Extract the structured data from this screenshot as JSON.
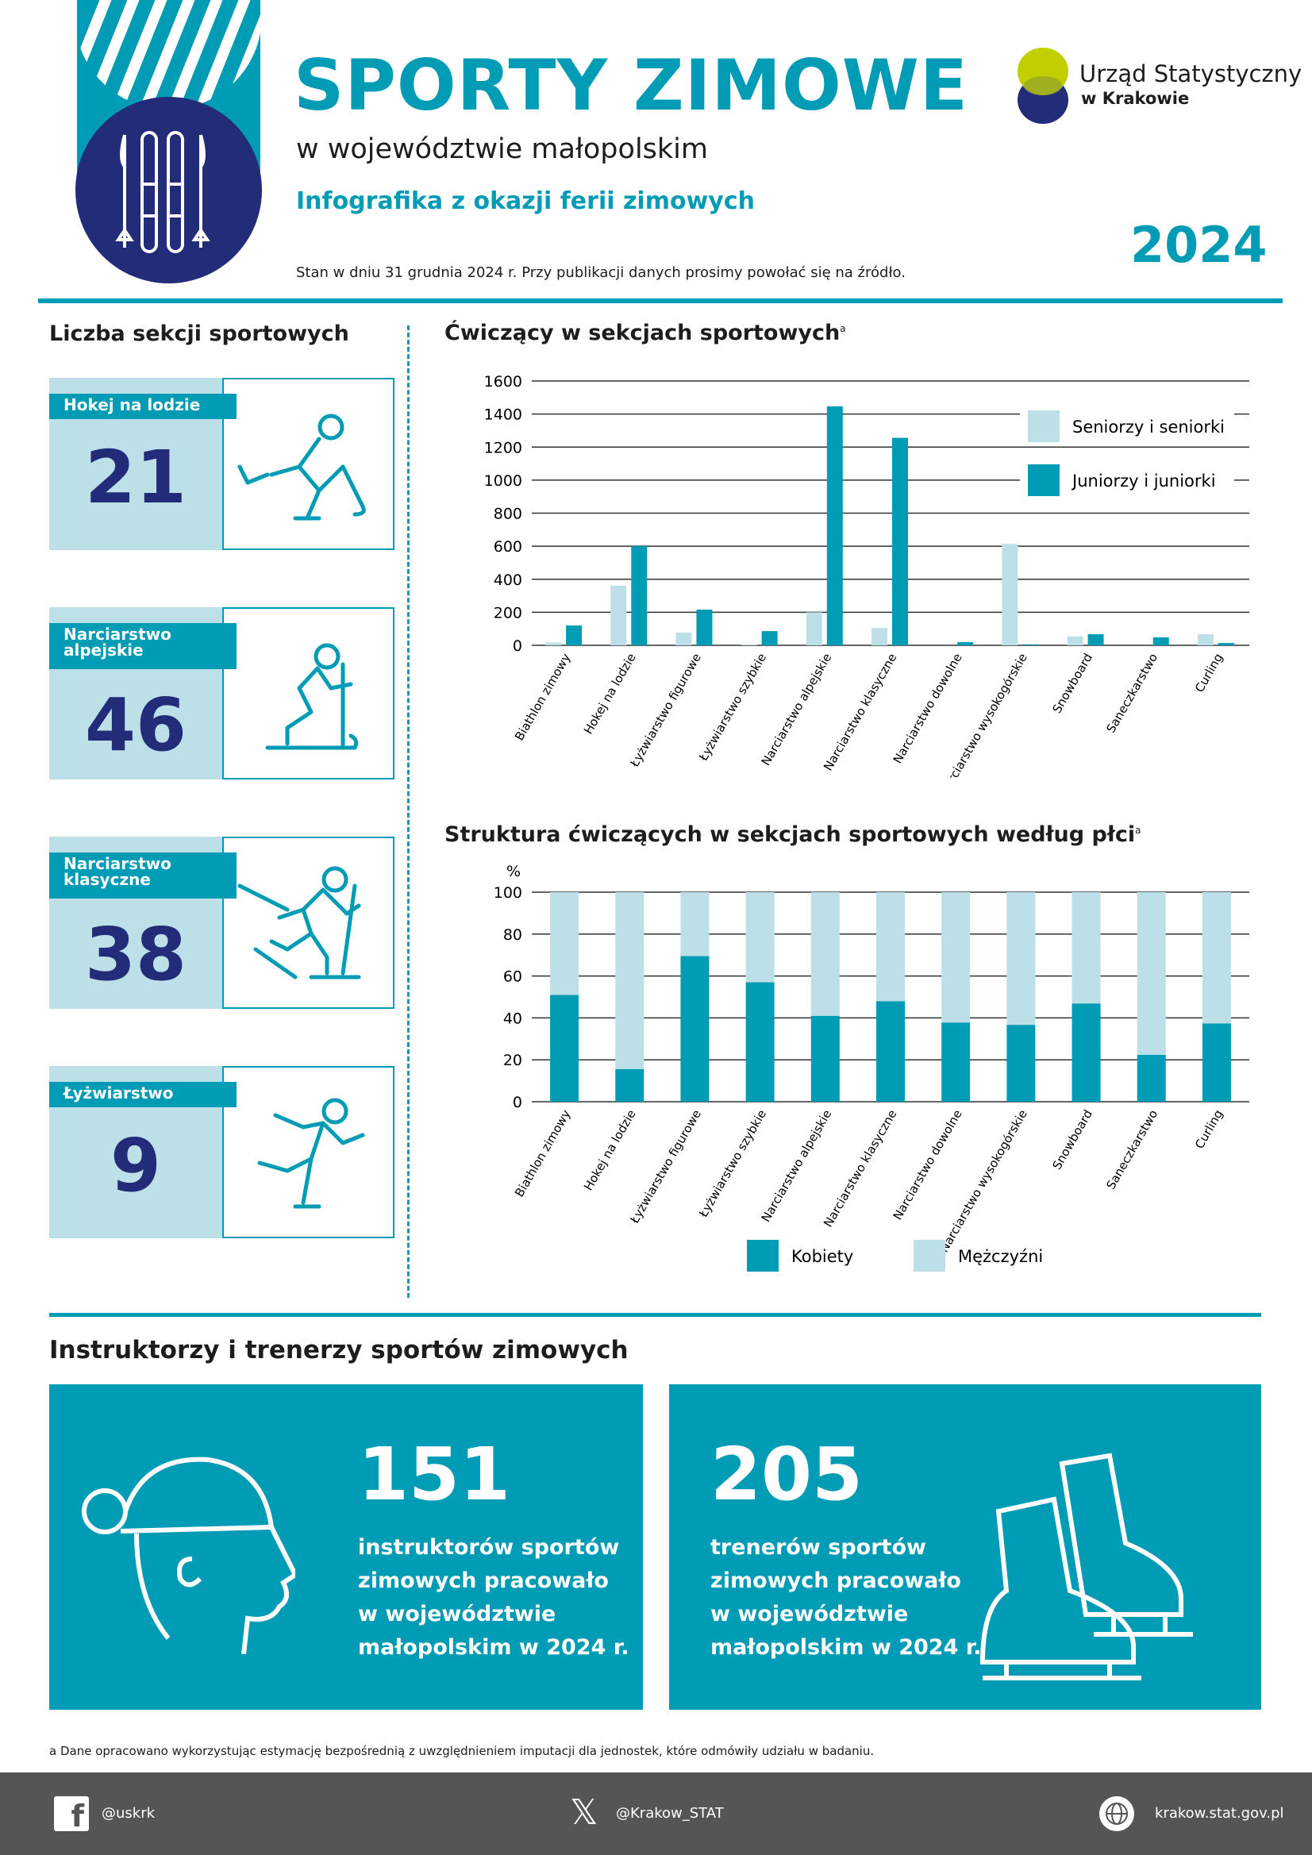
{
  "header": {
    "title": "SPORTY ZIMOWE",
    "subtitle": "w województwie małopolskim",
    "tagline": "Infografika z okazji ferii zimowych",
    "year": "2024",
    "state_note": "Stan w dniu 31 grudnia 2024 r. Przy publikacji danych prosimy powołać się na źródło.",
    "logo": {
      "name": "Urząd Statystyczny",
      "city": "w Krakowie"
    },
    "icon": "skis-and-poles-icon"
  },
  "sections": {
    "heading": "Liczba sekcji sportowych",
    "cards": [
      {
        "label": "Hokej na lodzie",
        "value": "21",
        "icon": "hockey-player-icon"
      },
      {
        "label": "Narciarstwo alpejskie",
        "value": "46",
        "icon": "alpine-skier-icon"
      },
      {
        "label": "Narciarstwo klasyczne",
        "value": "38",
        "icon": "cross-country-skier-icon"
      },
      {
        "label": "Łyżwiarstwo",
        "value": "9",
        "icon": "figure-skater-icon"
      }
    ]
  },
  "chart_data": [
    {
      "type": "bar",
      "title": "Ćwiczący w sekcjach sportowych",
      "title_sup": "a",
      "categories": [
        "Biathlon zimowy",
        "Hokej na lodzie",
        "Łyżwiarstwo figurowe",
        "Łyżwiarstwo szybkie",
        "Narciarstwo alpejskie",
        "Narciarstwo klasyczne",
        "Narciarstwo dowolne",
        "Narciarstwo wysokogórskie",
        "Snowboard",
        "Saneczkarstwo",
        "Curling"
      ],
      "series": [
        {
          "name": "Seniorzy i seniorki",
          "color": "#bde0e8",
          "values": [
            16,
            361,
            77,
            6,
            200,
            105,
            0,
            614,
            54,
            0,
            67
          ]
        },
        {
          "name": "Juniorzy i juniorki",
          "color": "#009bb4",
          "values": [
            120,
            600,
            216,
            86,
            1447,
            1256,
            19,
            6,
            67,
            48,
            14
          ]
        }
      ],
      "yticks": [
        "0",
        "200",
        "400",
        "600",
        "800",
        "1000",
        "1200",
        "1400",
        "1600"
      ],
      "ylim": [
        0,
        1600
      ],
      "grid": true,
      "legend": "top-right"
    },
    {
      "type": "bar",
      "stacked": true,
      "title": "Struktura ćwiczących w sekcjach sportowych według płci",
      "title_sup": "a",
      "ylabel": "%",
      "categories": [
        "Biathlon zimowy",
        "Hokej na lodzie",
        "Łyżwiarstwo figurowe",
        "Łyżwiarstwo szybkie",
        "Narciarstwo alpejskie",
        "Narciarstwo klasyczne",
        "Narciarstwo dowolne",
        "Narciarstwo wysokogórskie",
        "Snowboard",
        "Saneczkarstwo",
        "Curling"
      ],
      "series": [
        {
          "name": "Kobiety",
          "color": "#009bb4",
          "values": [
            51,
            15.6,
            69.5,
            57,
            41,
            48,
            37.8,
            36.7,
            46.9,
            22.4,
            37.4
          ]
        },
        {
          "name": "Mężczyźni",
          "color": "#bde0e8",
          "values": [
            49,
            84.4,
            30.5,
            43,
            59,
            52,
            62.2,
            63.3,
            53.1,
            77.6,
            62.6
          ]
        }
      ],
      "yticks": [
        "0",
        "20",
        "40",
        "60",
        "80",
        "100"
      ],
      "ylim": [
        0,
        100
      ],
      "grid": true,
      "legend": "bottom"
    }
  ],
  "instructors": {
    "heading": "Instruktorzy i trenerzy sportów zimowych",
    "boxes": [
      {
        "value": "151",
        "lines": [
          "instruktorów sportów",
          "zimowych pracowało",
          "w województwie",
          "małopolskim w 2024 r."
        ],
        "icon": "winter-hat-head-icon"
      },
      {
        "value": "205",
        "lines": [
          "trenerów sportów",
          "zimowych pracowało",
          "w województwie",
          "małopolskim w 2024 r."
        ],
        "icon": "ice-skates-icon"
      }
    ]
  },
  "footnote": "a Dane opracowano wykorzystując estymację bezpośrednią z uwzględnieniem imputacji dla jednostek, które odmówiły udziału w badaniu.",
  "footer": {
    "facebook": "@uskrk",
    "x": "@Krakow_STAT",
    "web": "krakow.stat.gov.pl"
  },
  "colors": {
    "teal": "#009bb4",
    "light": "#bde0e8",
    "navy": "#222c78",
    "footer": "#555555"
  }
}
